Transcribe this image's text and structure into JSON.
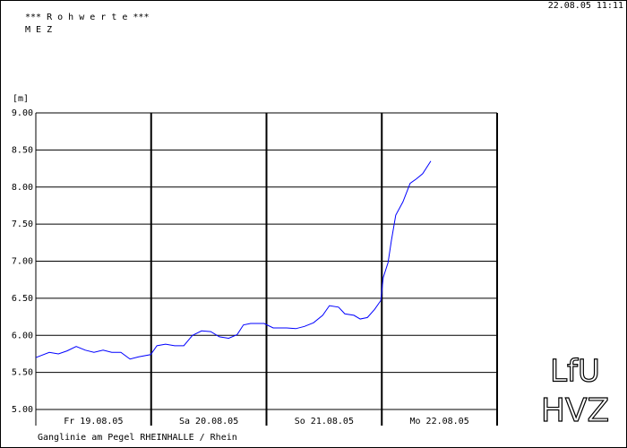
{
  "header": {
    "title": "*** R o h w e r t e ***",
    "timezone": "M E Z",
    "timestamp": "22.08.05 11:11"
  },
  "chart_data": {
    "type": "line",
    "y_label": "[m]",
    "caption": "Ganglinie am Pegel RHEINHALLE / Rhein",
    "xlim": [
      0,
      96
    ],
    "xticks": [
      {
        "value": 12,
        "label": "Fr 19.08.05"
      },
      {
        "value": 36,
        "label": "Sa 20.08.05"
      },
      {
        "value": 60,
        "label": "So 21.08.05"
      },
      {
        "value": 84,
        "label": "Mo 22.08.05"
      }
    ],
    "xgrid": [
      0,
      24,
      48,
      72,
      96
    ],
    "ylim": [
      5,
      9
    ],
    "yticks": [
      {
        "value": 5,
        "label": "5.00"
      },
      {
        "value": 5.5,
        "label": "5.50"
      },
      {
        "value": 6,
        "label": "6.00"
      },
      {
        "value": 6.5,
        "label": "6.50"
      },
      {
        "value": 7,
        "label": "7.00"
      },
      {
        "value": 7.5,
        "label": "7.50"
      },
      {
        "value": 8,
        "label": "8.00"
      },
      {
        "value": 8.5,
        "label": "8.50"
      },
      {
        "value": 9,
        "label": "9.00"
      }
    ],
    "grid": true,
    "series": [
      {
        "color": "#0000ff",
        "x": [
          0,
          2.8,
          4.7,
          6.5,
          8.4,
          10.3,
          12.1,
          14.0,
          15.8,
          17.7,
          19.6,
          21.4,
          23.9,
          25.2,
          27.0,
          28.9,
          30.8,
          32.6,
          34.5,
          36.4,
          38.2,
          40.1,
          41.9,
          43.2,
          44.7,
          47.5,
          49.4,
          52.2,
          54.1,
          55.9,
          57.8,
          59.7,
          61.1,
          63.0,
          64.3,
          66.2,
          67.5,
          69.0,
          70.5,
          71.8,
          72.3,
          73.3,
          74.0,
          74.9,
          76.4,
          77.9,
          79.2,
          80.5,
          82.2
        ],
        "values": [
          5.7,
          5.77,
          5.75,
          5.79,
          5.85,
          5.8,
          5.77,
          5.8,
          5.77,
          5.77,
          5.68,
          5.71,
          5.74,
          5.86,
          5.88,
          5.86,
          5.86,
          6.0,
          6.06,
          6.05,
          5.98,
          5.96,
          6.01,
          6.14,
          6.16,
          6.16,
          6.1,
          6.1,
          6.09,
          6.12,
          6.17,
          6.27,
          6.4,
          6.38,
          6.29,
          6.27,
          6.22,
          6.24,
          6.35,
          6.47,
          6.78,
          6.98,
          7.28,
          7.62,
          7.8,
          8.05,
          8.11,
          8.18,
          8.35
        ]
      }
    ]
  },
  "logos": {
    "top": "LfU",
    "bottom": "HVZ"
  }
}
